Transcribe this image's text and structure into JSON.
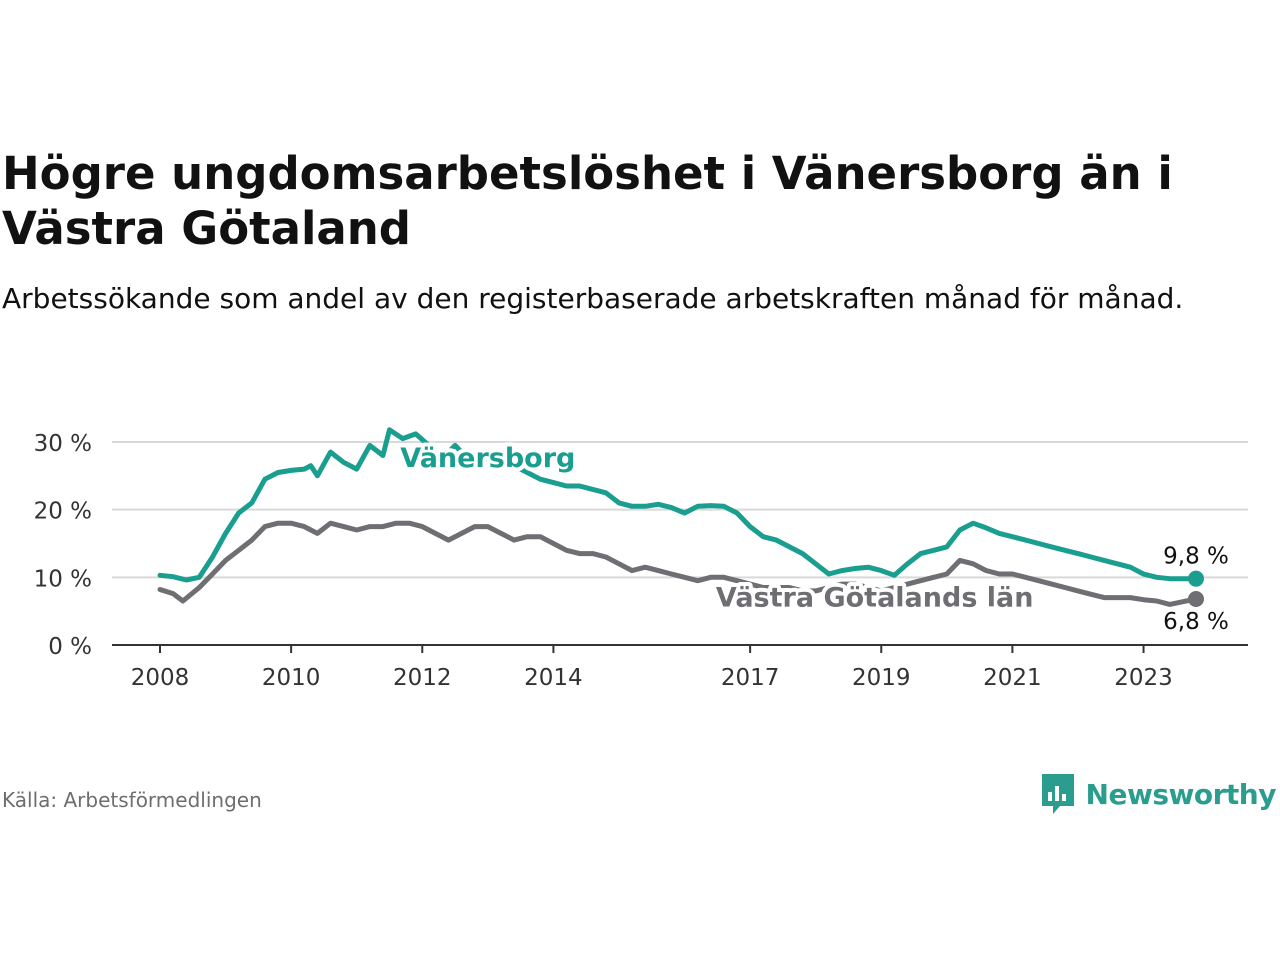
{
  "title": "Högre ungdomsarbetslöshet i Vänersborg än i Västra Götaland",
  "subtitle": "Arbetssökande som andel av den registerbaserade arbetskraften månad för månad.",
  "source": "Källa: Arbetsförmedlingen",
  "brand": "Newsworthy",
  "colors": {
    "vanersborg": "#1a9e8f",
    "lan": "#6e6e73",
    "grid": "#d9d9d9",
    "axis": "#333333",
    "brand": "#2a9d8f"
  },
  "chart_data": {
    "type": "line",
    "title": "Högre ungdomsarbetslöshet i Vänersborg än i Västra Götaland",
    "xlabel": "",
    "ylabel": "",
    "xlim": [
      2007.5,
      2024.5
    ],
    "ylim": [
      0,
      30
    ],
    "yticks": [
      0,
      10,
      20,
      30
    ],
    "ytick_labels": [
      "0 %",
      "10 %",
      "20 %",
      "30 %"
    ],
    "xticks": [
      2008,
      2010,
      2012,
      2014,
      2017,
      2019,
      2021,
      2023
    ],
    "xtick_labels": [
      "2008",
      "2010",
      "2012",
      "2014",
      "2017",
      "2019",
      "2021",
      "2023"
    ],
    "grid": true,
    "series": [
      {
        "name": "Vänersborg",
        "end_label": "9,8 %",
        "x": [
          2008.0,
          2008.2,
          2008.4,
          2008.6,
          2008.8,
          2009.0,
          2009.2,
          2009.4,
          2009.6,
          2009.8,
          2010.0,
          2010.2,
          2010.3,
          2010.4,
          2010.6,
          2010.8,
          2011.0,
          2011.2,
          2011.4,
          2011.5,
          2011.7,
          2011.9,
          2012.1,
          2012.3,
          2012.5,
          2012.6,
          2012.8,
          2013.0,
          2013.2,
          2013.4,
          2013.6,
          2013.8,
          2014.0,
          2014.2,
          2014.4,
          2014.6,
          2014.8,
          2015.0,
          2015.2,
          2015.4,
          2015.6,
          2015.8,
          2016.0,
          2016.2,
          2016.4,
          2016.6,
          2016.8,
          2017.0,
          2017.2,
          2017.4,
          2017.6,
          2017.8,
          2018.0,
          2018.2,
          2018.4,
          2018.6,
          2018.8,
          2019.0,
          2019.2,
          2019.4,
          2019.6,
          2019.8,
          2020.0,
          2020.2,
          2020.4,
          2020.6,
          2020.8,
          2021.0,
          2021.2,
          2021.4,
          2021.6,
          2021.8,
          2022.0,
          2022.2,
          2022.4,
          2022.6,
          2022.8,
          2023.0,
          2023.2,
          2023.4,
          2023.6,
          2023.8
        ],
        "values": [
          10.3,
          10.1,
          9.6,
          10.0,
          13.0,
          16.5,
          19.5,
          21.0,
          24.5,
          25.5,
          25.8,
          26.0,
          26.5,
          25.0,
          28.5,
          27.0,
          26.0,
          29.5,
          28.0,
          31.8,
          30.5,
          31.2,
          29.5,
          27.5,
          29.5,
          28.5,
          28.0,
          27.5,
          27.5,
          26.5,
          25.5,
          24.5,
          24.0,
          23.5,
          23.5,
          23.0,
          22.5,
          21.0,
          20.5,
          20.5,
          20.8,
          20.3,
          19.5,
          20.5,
          20.6,
          20.5,
          19.5,
          17.5,
          16.0,
          15.5,
          14.5,
          13.5,
          12.0,
          10.5,
          11.0,
          11.3,
          11.5,
          11.0,
          10.3,
          12.0,
          13.5,
          14.0,
          14.5,
          17.0,
          18.0,
          17.3,
          16.5,
          16.0,
          15.5,
          15.0,
          14.5,
          14.0,
          13.5,
          13.0,
          12.5,
          12.0,
          11.5,
          10.5,
          10.0,
          9.8,
          9.8,
          9.8
        ]
      },
      {
        "name": "Västra Götalands län",
        "end_label": "6,8 %",
        "x": [
          2008.0,
          2008.2,
          2008.35,
          2008.6,
          2008.8,
          2009.0,
          2009.2,
          2009.4,
          2009.6,
          2009.8,
          2010.0,
          2010.2,
          2010.4,
          2010.6,
          2010.8,
          2011.0,
          2011.2,
          2011.4,
          2011.6,
          2011.8,
          2012.0,
          2012.2,
          2012.4,
          2012.6,
          2012.8,
          2013.0,
          2013.2,
          2013.4,
          2013.6,
          2013.8,
          2014.0,
          2014.2,
          2014.4,
          2014.6,
          2014.8,
          2015.0,
          2015.2,
          2015.4,
          2015.6,
          2015.8,
          2016.0,
          2016.2,
          2016.4,
          2016.6,
          2016.8,
          2017.0,
          2017.2,
          2017.4,
          2017.6,
          2017.8,
          2018.0,
          2018.2,
          2018.4,
          2018.6,
          2018.8,
          2019.0,
          2019.2,
          2019.4,
          2019.6,
          2019.8,
          2020.0,
          2020.2,
          2020.4,
          2020.6,
          2020.8,
          2021.0,
          2021.2,
          2021.4,
          2021.6,
          2021.8,
          2022.0,
          2022.2,
          2022.4,
          2022.6,
          2022.8,
          2023.0,
          2023.2,
          2023.4,
          2023.6,
          2023.8
        ],
        "values": [
          8.2,
          7.6,
          6.5,
          8.5,
          10.5,
          12.5,
          14.0,
          15.5,
          17.5,
          18.0,
          18.0,
          17.5,
          16.5,
          18.0,
          17.5,
          17.0,
          17.5,
          17.5,
          18.0,
          18.0,
          17.5,
          16.5,
          15.5,
          16.5,
          17.5,
          17.5,
          16.5,
          15.5,
          16.0,
          16.0,
          15.0,
          14.0,
          13.5,
          13.5,
          13.0,
          12.0,
          11.0,
          11.5,
          11.0,
          10.5,
          10.0,
          9.5,
          10.0,
          10.0,
          9.5,
          9.0,
          8.5,
          8.5,
          8.5,
          8.0,
          8.0,
          8.5,
          9.0,
          9.0,
          8.5,
          8.0,
          8.5,
          9.0,
          9.5,
          10.0,
          10.5,
          12.5,
          12.0,
          11.0,
          10.5,
          10.5,
          10.0,
          9.5,
          9.0,
          8.5,
          8.0,
          7.5,
          7.0,
          7.0,
          7.0,
          6.7,
          6.5,
          6.0,
          6.4,
          6.8
        ]
      }
    ]
  }
}
